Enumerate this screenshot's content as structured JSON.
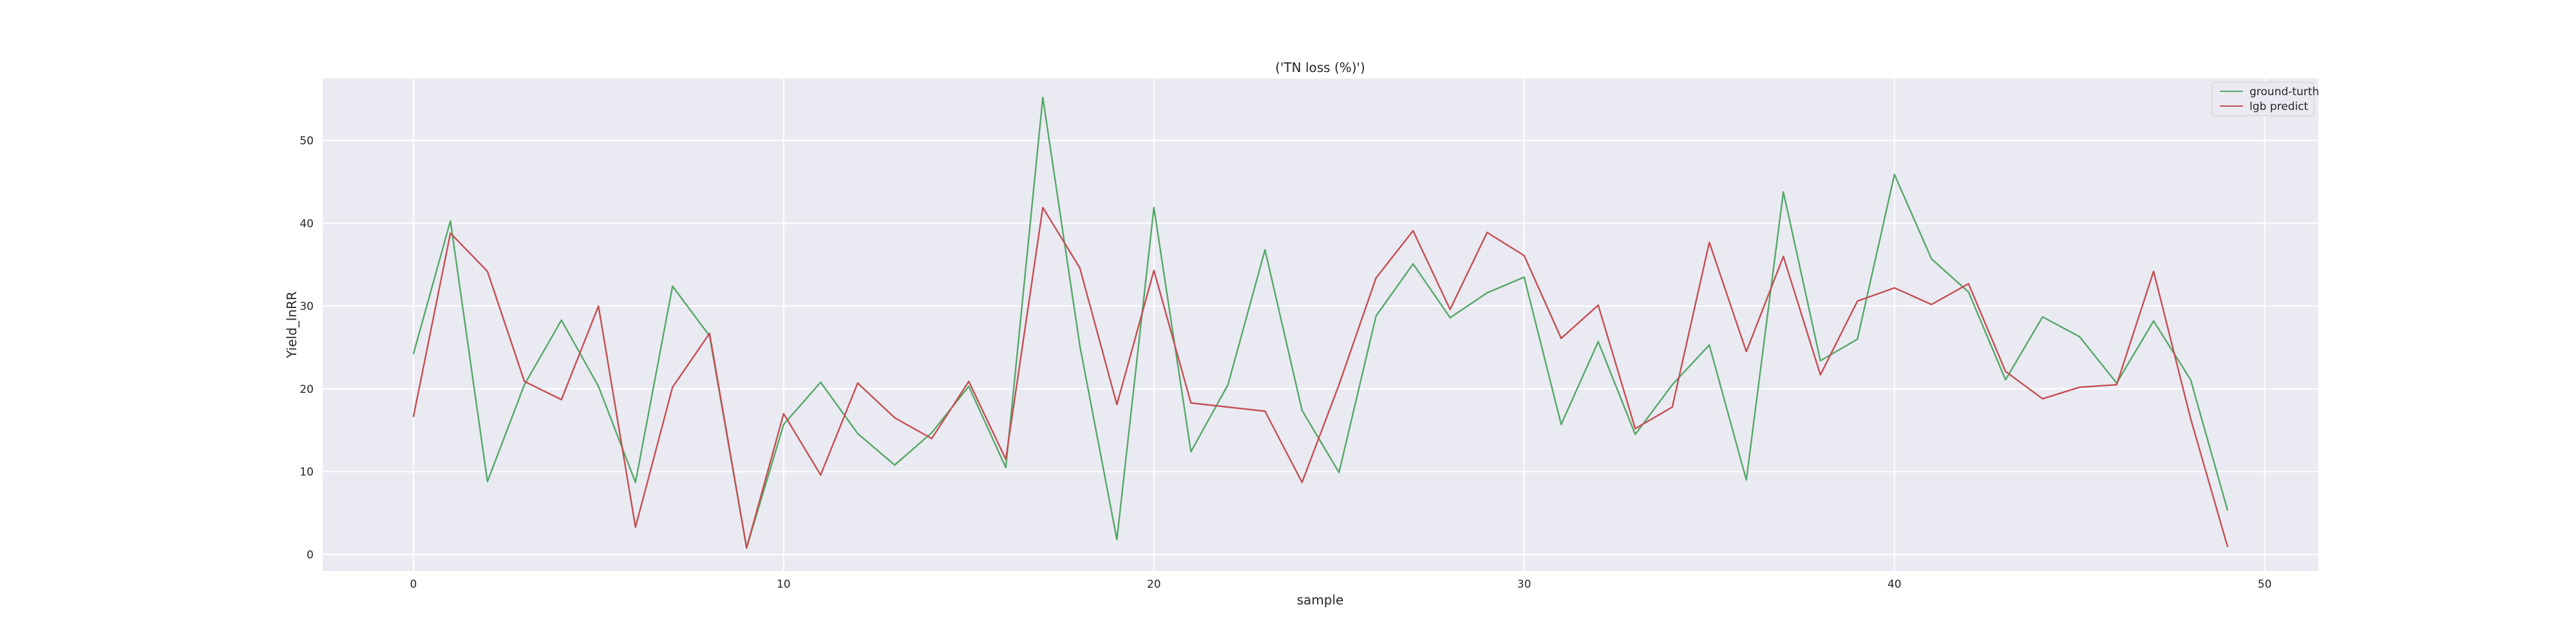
{
  "chart_data": {
    "type": "line",
    "title": "('TN loss (%)')",
    "xlabel": "sample",
    "ylabel": "Yield_lnRR",
    "xlim": [
      -2.45,
      51.45
    ],
    "ylim": [
      -2.0,
      57.5
    ],
    "xticks": [
      0,
      10,
      20,
      30,
      40,
      50
    ],
    "yticks": [
      0,
      10,
      20,
      30,
      40,
      50
    ],
    "grid": true,
    "legend_position": "top-right",
    "x": [
      0,
      1,
      2,
      3,
      4,
      5,
      6,
      7,
      8,
      9,
      10,
      11,
      12,
      13,
      14,
      15,
      16,
      17,
      18,
      19,
      20,
      21,
      22,
      23,
      24,
      25,
      26,
      27,
      28,
      29,
      30,
      31,
      32,
      33,
      34,
      35,
      36,
      37,
      38,
      39,
      40,
      41,
      42,
      43,
      44,
      45,
      46,
      47,
      48,
      49
    ],
    "series": [
      {
        "name": "ground-turth",
        "color": "#55a868",
        "values": [
          24.2,
          40.3,
          8.8,
          20.5,
          28.3,
          20.3,
          8.7,
          32.4,
          26.4,
          0.8,
          15.7,
          20.8,
          14.6,
          10.8,
          14.7,
          20.3,
          10.5,
          55.2,
          25.2,
          1.8,
          41.9,
          12.4,
          20.5,
          36.8,
          17.4,
          9.9,
          28.8,
          35.1,
          28.6,
          31.6,
          33.5,
          15.7,
          25.7,
          14.5,
          20.5,
          25.3,
          9.0,
          43.8,
          23.4,
          26.0,
          45.9,
          35.7,
          31.7,
          21.1,
          28.7,
          26.3,
          20.7,
          28.2,
          21.1,
          5.3
        ]
      },
      {
        "name": "lgb predict",
        "color": "#c44e52",
        "values": [
          16.6,
          38.8,
          34.2,
          20.9,
          18.7,
          30.0,
          3.3,
          20.2,
          26.7,
          0.8,
          17.0,
          9.6,
          20.7,
          16.5,
          14.0,
          20.9,
          11.5,
          41.9,
          34.6,
          18.1,
          34.3,
          18.3,
          17.8,
          17.3,
          8.7,
          20.5,
          33.4,
          39.1,
          29.6,
          38.9,
          36.1,
          26.1,
          30.1,
          15.2,
          17.8,
          37.7,
          24.5,
          36.0,
          21.7,
          30.6,
          32.2,
          30.2,
          32.7,
          22.1,
          18.8,
          20.2,
          20.5,
          34.2,
          16.4,
          0.9
        ]
      }
    ]
  }
}
